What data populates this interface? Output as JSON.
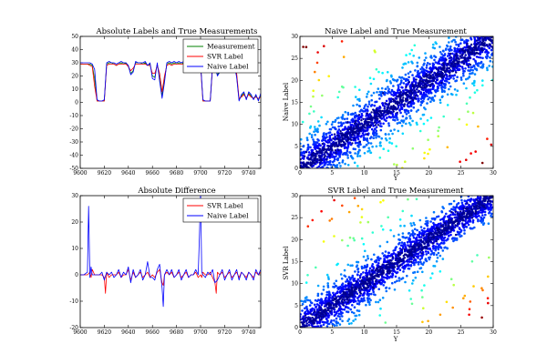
{
  "chart_data": [
    {
      "type": "line",
      "title": "Absolute Labels and True Measurements",
      "xlabel": "",
      "ylabel": "",
      "xlim": [
        9600,
        9750
      ],
      "ylim": [
        -50,
        50
      ],
      "xticks": [
        9600,
        9620,
        9640,
        9660,
        9680,
        9700,
        9720,
        9740
      ],
      "yticks": [
        -50,
        -40,
        -30,
        -20,
        -10,
        0,
        10,
        20,
        30,
        40,
        50
      ],
      "legend_placement": "top-right",
      "series": [
        {
          "name": "Measurement",
          "color": "#008000",
          "x": [
            9600,
            9603,
            9606,
            9608,
            9610,
            9612,
            9614,
            9616,
            9618,
            9620,
            9622,
            9624,
            9626,
            9628,
            9630,
            9632,
            9634,
            9636,
            9638,
            9640,
            9642,
            9644,
            9646,
            9648,
            9650,
            9652,
            9654,
            9656,
            9658,
            9660,
            9662,
            9664,
            9666,
            9668,
            9670,
            9672,
            9674,
            9676,
            9678,
            9680,
            9682,
            9684,
            9686,
            9688,
            9690,
            9692,
            9694,
            9696,
            9698,
            9700,
            9702,
            9704,
            9706,
            9708,
            9710,
            9712,
            9714,
            9716,
            9718,
            9720,
            9722,
            9724,
            9726,
            9728,
            9730,
            9732,
            9734,
            9736,
            9738,
            9740,
            9742,
            9744,
            9746,
            9748,
            9750
          ],
          "values": [
            29,
            29,
            29,
            29,
            28,
            18,
            1,
            1,
            1,
            1,
            29,
            30,
            30,
            29,
            28,
            29,
            30,
            29,
            30,
            27,
            22,
            24,
            30,
            30,
            30,
            29,
            30,
            28,
            29,
            20,
            19,
            29,
            18,
            5,
            17,
            29,
            30,
            29,
            30,
            29,
            30,
            29,
            30,
            29,
            30,
            29,
            30,
            29,
            30,
            29,
            1,
            1,
            1,
            1,
            28,
            27,
            21,
            24,
            25,
            30,
            30,
            29,
            29,
            28,
            20,
            2,
            5,
            7,
            3,
            7,
            5,
            3,
            5,
            2,
            5
          ]
        },
        {
          "name": "SVR Label",
          "color": "#ff0000",
          "x": [
            9600,
            9603,
            9606,
            9608,
            9610,
            9612,
            9614,
            9616,
            9618,
            9620,
            9622,
            9624,
            9626,
            9628,
            9630,
            9632,
            9634,
            9636,
            9638,
            9640,
            9642,
            9644,
            9646,
            9648,
            9650,
            9652,
            9654,
            9656,
            9658,
            9660,
            9662,
            9664,
            9666,
            9668,
            9670,
            9672,
            9674,
            9676,
            9678,
            9680,
            9682,
            9684,
            9686,
            9688,
            9690,
            9692,
            9694,
            9696,
            9698,
            9700,
            9702,
            9704,
            9706,
            9708,
            9710,
            9712,
            9714,
            9716,
            9718,
            9720,
            9722,
            9724,
            9726,
            9728,
            9730,
            9732,
            9734,
            9736,
            9738,
            9740,
            9742,
            9744,
            9746,
            9748,
            9750
          ],
          "values": [
            29,
            29,
            29,
            28,
            27,
            12,
            1,
            1,
            1,
            1,
            28,
            29,
            29,
            29,
            28,
            29,
            29,
            29,
            29,
            27,
            24,
            26,
            29,
            29,
            29,
            29,
            29,
            28,
            28,
            22,
            22,
            28,
            22,
            8,
            20,
            28,
            29,
            28,
            29,
            29,
            29,
            29,
            29,
            29,
            29,
            29,
            29,
            29,
            29,
            28,
            1,
            1,
            1,
            1,
            27,
            26,
            23,
            25,
            25,
            29,
            29,
            29,
            28,
            27,
            22,
            3,
            4,
            6,
            3,
            6,
            4,
            3,
            4,
            3,
            4
          ]
        },
        {
          "name": "Naive Label",
          "color": "#0000ff",
          "x": [
            9600,
            9603,
            9606,
            9608,
            9610,
            9612,
            9614,
            9616,
            9618,
            9620,
            9622,
            9624,
            9626,
            9628,
            9630,
            9632,
            9634,
            9636,
            9638,
            9640,
            9642,
            9644,
            9646,
            9648,
            9650,
            9652,
            9654,
            9656,
            9658,
            9660,
            9662,
            9664,
            9666,
            9668,
            9670,
            9672,
            9674,
            9676,
            9678,
            9680,
            9682,
            9684,
            9686,
            9688,
            9690,
            9692,
            9694,
            9696,
            9698,
            9700,
            9702,
            9704,
            9706,
            9708,
            9710,
            9712,
            9714,
            9716,
            9718,
            9720,
            9722,
            9724,
            9726,
            9728,
            9730,
            9732,
            9734,
            9736,
            9738,
            9740,
            9742,
            9744,
            9746,
            9748,
            9750
          ],
          "values": [
            30,
            30,
            30,
            30,
            29,
            25,
            2,
            1,
            1,
            2,
            30,
            31,
            30,
            30,
            29,
            30,
            31,
            30,
            30,
            28,
            21,
            23,
            31,
            30,
            30,
            30,
            31,
            28,
            30,
            18,
            17,
            30,
            16,
            3,
            15,
            30,
            31,
            30,
            31,
            30,
            31,
            30,
            31,
            30,
            31,
            30,
            31,
            30,
            31,
            30,
            2,
            1,
            1,
            1,
            29,
            28,
            20,
            23,
            24,
            31,
            30,
            30,
            30,
            29,
            19,
            1,
            6,
            8,
            2,
            8,
            6,
            2,
            6,
            1,
            7
          ]
        }
      ]
    },
    {
      "type": "scatter",
      "title": "Naive Label and True Measurement",
      "xlabel": "Y",
      "ylabel": "Naive Label",
      "xlim": [
        0,
        30
      ],
      "ylim": [
        0,
        30
      ],
      "xticks": [
        0,
        5,
        10,
        15,
        20,
        25,
        30
      ],
      "yticks": [
        0,
        5,
        10,
        15,
        20,
        25,
        30
      ],
      "colormap": "jet",
      "spread": 3.2
    },
    {
      "type": "line",
      "title": "Absolute Difference",
      "xlabel": "",
      "ylabel": "",
      "xlim": [
        9600,
        9750
      ],
      "ylim": [
        -20,
        30
      ],
      "xticks": [
        9600,
        9620,
        9640,
        9660,
        9680,
        9700,
        9720,
        9740
      ],
      "yticks": [
        -20,
        -10,
        0,
        10,
        20,
        30
      ],
      "legend_placement": "top-right",
      "series": [
        {
          "name": "SVR Label",
          "color": "#ff0000",
          "x": [
            9600,
            9603,
            9606,
            9608,
            9609,
            9610,
            9612,
            9614,
            9616,
            9618,
            9620,
            9621,
            9622,
            9624,
            9626,
            9628,
            9630,
            9632,
            9634,
            9636,
            9638,
            9640,
            9642,
            9644,
            9646,
            9648,
            9650,
            9652,
            9654,
            9656,
            9658,
            9660,
            9662,
            9664,
            9666,
            9668,
            9669,
            9670,
            9672,
            9674,
            9676,
            9678,
            9680,
            9682,
            9684,
            9686,
            9688,
            9690,
            9692,
            9694,
            9696,
            9698,
            9700,
            9701,
            9702,
            9704,
            9706,
            9708,
            9710,
            9712,
            9713,
            9714,
            9716,
            9718,
            9720,
            9722,
            9724,
            9726,
            9728,
            9730,
            9732,
            9734,
            9736,
            9738,
            9740,
            9742,
            9744,
            9746,
            9748,
            9750
          ],
          "values": [
            0,
            0,
            0,
            1,
            -1,
            2,
            0,
            0,
            0,
            0,
            -1,
            -7,
            1,
            -1,
            0,
            0,
            0,
            1,
            -1,
            0,
            0,
            2,
            -2,
            1,
            -1,
            0,
            1,
            -1,
            0,
            1,
            -1,
            0,
            -1,
            1,
            2,
            -3,
            -4,
            0,
            1,
            0,
            1,
            -1,
            0,
            1,
            -1,
            0,
            1,
            -1,
            0,
            0,
            1,
            -1,
            0,
            -1,
            1,
            0,
            0,
            1,
            -1,
            -3,
            -7,
            1,
            0,
            1,
            -1,
            0,
            1,
            -1,
            0,
            1,
            -1,
            1,
            0,
            -1,
            1,
            0,
            -1,
            1,
            0,
            1
          ]
        },
        {
          "name": "Naive Label",
          "color": "#0000ff",
          "x": [
            9600,
            9603,
            9606,
            9607,
            9608,
            9609,
            9610,
            9612,
            9614,
            9616,
            9618,
            9620,
            9622,
            9624,
            9626,
            9628,
            9630,
            9632,
            9634,
            9636,
            9638,
            9640,
            9642,
            9644,
            9646,
            9648,
            9650,
            9652,
            9654,
            9656,
            9658,
            9660,
            9662,
            9664,
            9666,
            9668,
            9669,
            9670,
            9672,
            9674,
            9676,
            9678,
            9680,
            9682,
            9684,
            9686,
            9688,
            9690,
            9692,
            9694,
            9696,
            9698,
            9699,
            9700,
            9701,
            9702,
            9704,
            9706,
            9708,
            9710,
            9712,
            9714,
            9716,
            9718,
            9720,
            9722,
            9724,
            9726,
            9728,
            9730,
            9732,
            9734,
            9736,
            9738,
            9740,
            9742,
            9744,
            9746,
            9748,
            9750
          ],
          "values": [
            0,
            0,
            1,
            26,
            -1,
            3,
            0,
            0,
            0,
            0,
            1,
            -2,
            1,
            0,
            1,
            -1,
            0,
            2,
            -1,
            1,
            0,
            3,
            -3,
            2,
            -1,
            0,
            2,
            -2,
            0,
            5,
            -1,
            -1,
            -2,
            2,
            4,
            -5,
            -12,
            0,
            2,
            0,
            2,
            -1,
            0,
            2,
            -2,
            0,
            2,
            -1,
            0,
            0,
            2,
            0,
            14,
            31,
            1,
            0,
            -1,
            1,
            0,
            2,
            -3,
            -2,
            0,
            2,
            -2,
            0,
            2,
            -2,
            0,
            2,
            -2,
            1,
            0,
            -2,
            1,
            0,
            -2,
            2,
            0,
            2
          ]
        }
      ]
    },
    {
      "type": "scatter",
      "title": "SVR Label and True Measurement",
      "xlabel": "Y",
      "ylabel": "SVR Label",
      "xlim": [
        0,
        30
      ],
      "ylim": [
        0,
        30
      ],
      "xticks": [
        0,
        5,
        10,
        15,
        20,
        25,
        30
      ],
      "yticks": [
        0,
        5,
        10,
        15,
        20,
        25,
        30
      ],
      "colormap": "jet",
      "spread": 2.6
    }
  ]
}
